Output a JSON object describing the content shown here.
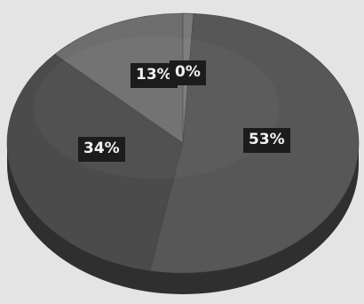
{
  "chart_data": {
    "type": "pie",
    "style": "3d",
    "categories": [
      "",
      "",
      "",
      ""
    ],
    "values": [
      53,
      34,
      13,
      0
    ],
    "labels": [
      "53%",
      "34%",
      "13%",
      "0%"
    ],
    "colors": [
      "#575757",
      "#4b4b4b",
      "#6e6e6e",
      "#7a7a7a"
    ],
    "side_color": "#2f2f2f",
    "background": "#e4e4e4",
    "title": "",
    "legend": "none"
  }
}
